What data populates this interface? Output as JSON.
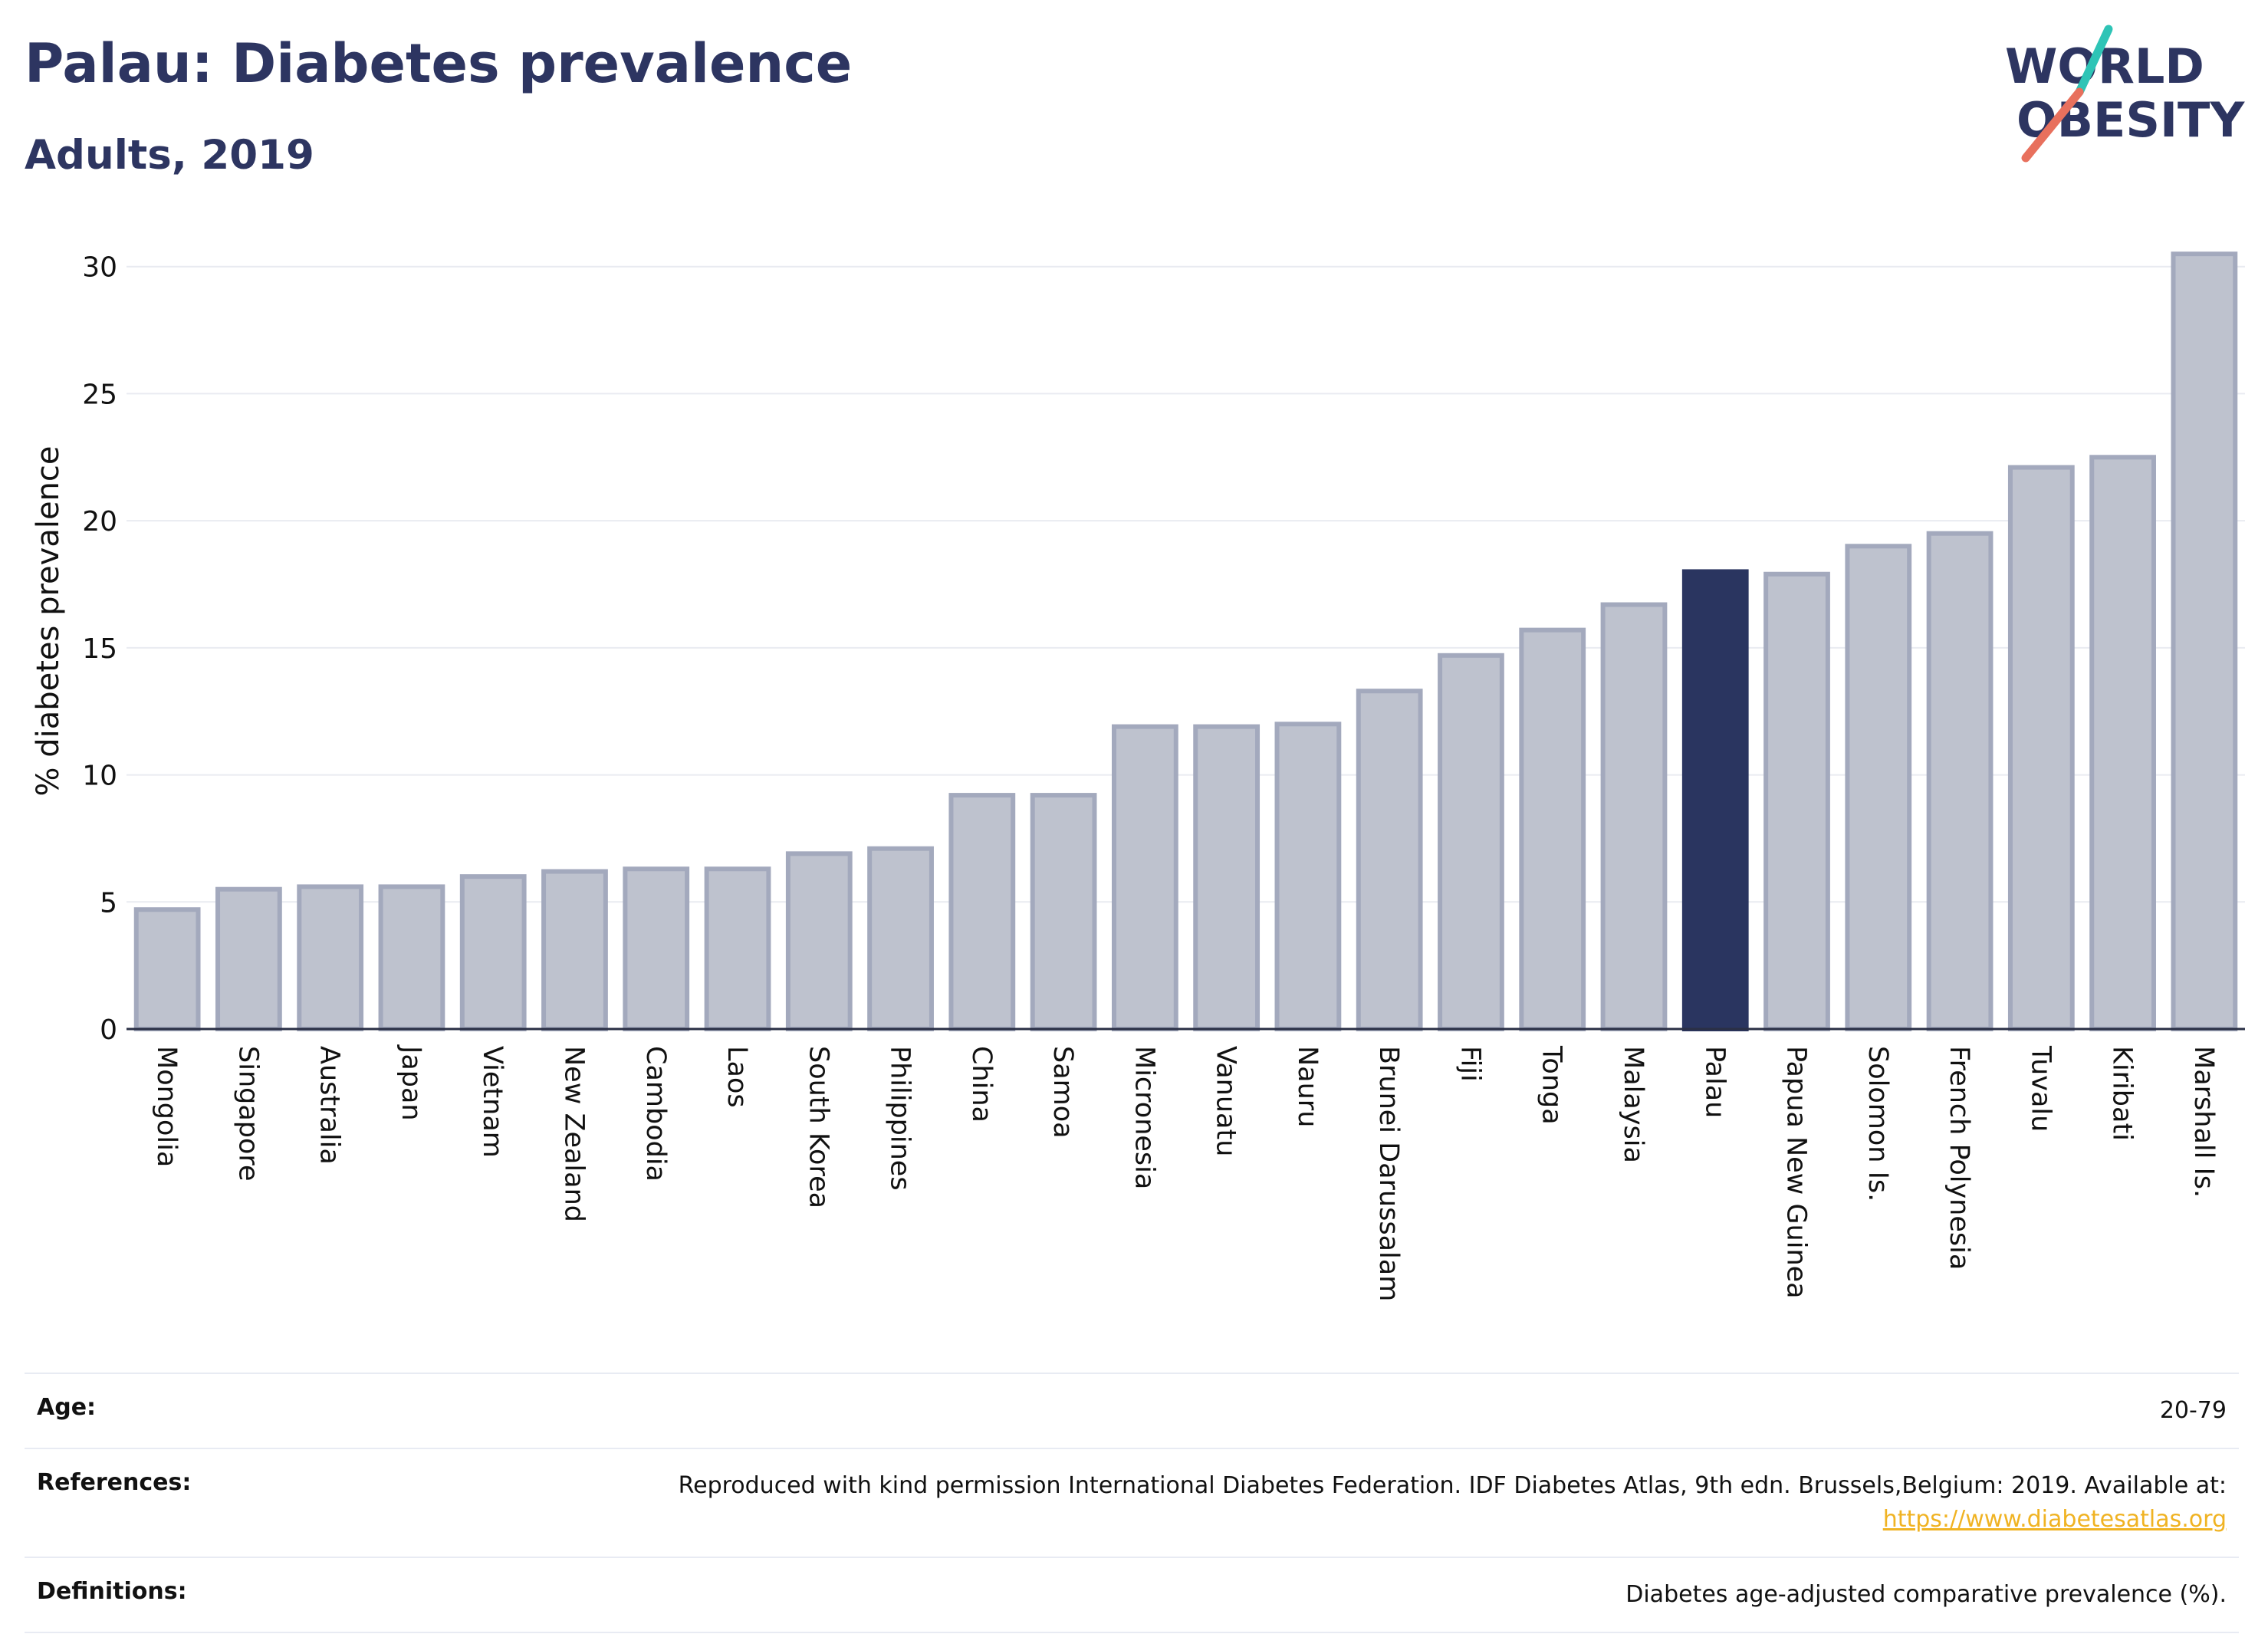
{
  "header": {
    "title": "Palau: Diabetes prevalence",
    "subtitle": "Adults, 2019"
  },
  "logo": {
    "line1": "WORLD",
    "line2": "OBESITY"
  },
  "colors": {
    "highlight": "#2a3560",
    "bar_fill": "#bec2ce",
    "bar_stroke": "#a3a9bd",
    "logo_teal": "#2ec4b6",
    "logo_coral": "#e8705d",
    "link": "#f0b323"
  },
  "chart_data": {
    "type": "bar",
    "ylabel": "% diabetes prevalence",
    "ylim": [
      0,
      31.5
    ],
    "yticks": [
      0,
      5,
      10,
      15,
      20,
      25,
      30
    ],
    "grid": true,
    "highlight": "Palau",
    "categories": [
      "Mongolia",
      "Singapore",
      "Australia",
      "Japan",
      "Vietnam",
      "New Zealand",
      "Cambodia",
      "Laos",
      "South Korea",
      "Philippines",
      "China",
      "Samoa",
      "Micronesia",
      "Vanuatu",
      "Nauru",
      "Brunei Darussalam",
      "Fiji",
      "Tonga",
      "Malaysia",
      "Palau",
      "Papua New Guinea",
      "Solomon Is.",
      "French Polynesia",
      "Tuvalu",
      "Kiribati",
      "Marshall Is."
    ],
    "values": [
      4.7,
      5.5,
      5.6,
      5.6,
      6.0,
      6.2,
      6.3,
      6.3,
      6.9,
      7.1,
      9.2,
      9.2,
      11.9,
      11.9,
      12.0,
      13.3,
      14.7,
      15.7,
      16.7,
      18.0,
      17.9,
      19.0,
      19.5,
      22.1,
      22.5,
      30.5
    ]
  },
  "info": {
    "age_label": "Age:",
    "age_value": "20-79",
    "references_label": "References:",
    "references_text": "Reproduced with kind permission International Diabetes Federation. IDF Diabetes Atlas, 9th edn. Brussels,Belgium: 2019. Available at:",
    "references_link": "https://www.diabetesatlas.org",
    "definitions_label": "Definitions:",
    "definitions_value": "Diabetes age-adjusted comparative prevalence (%)."
  }
}
